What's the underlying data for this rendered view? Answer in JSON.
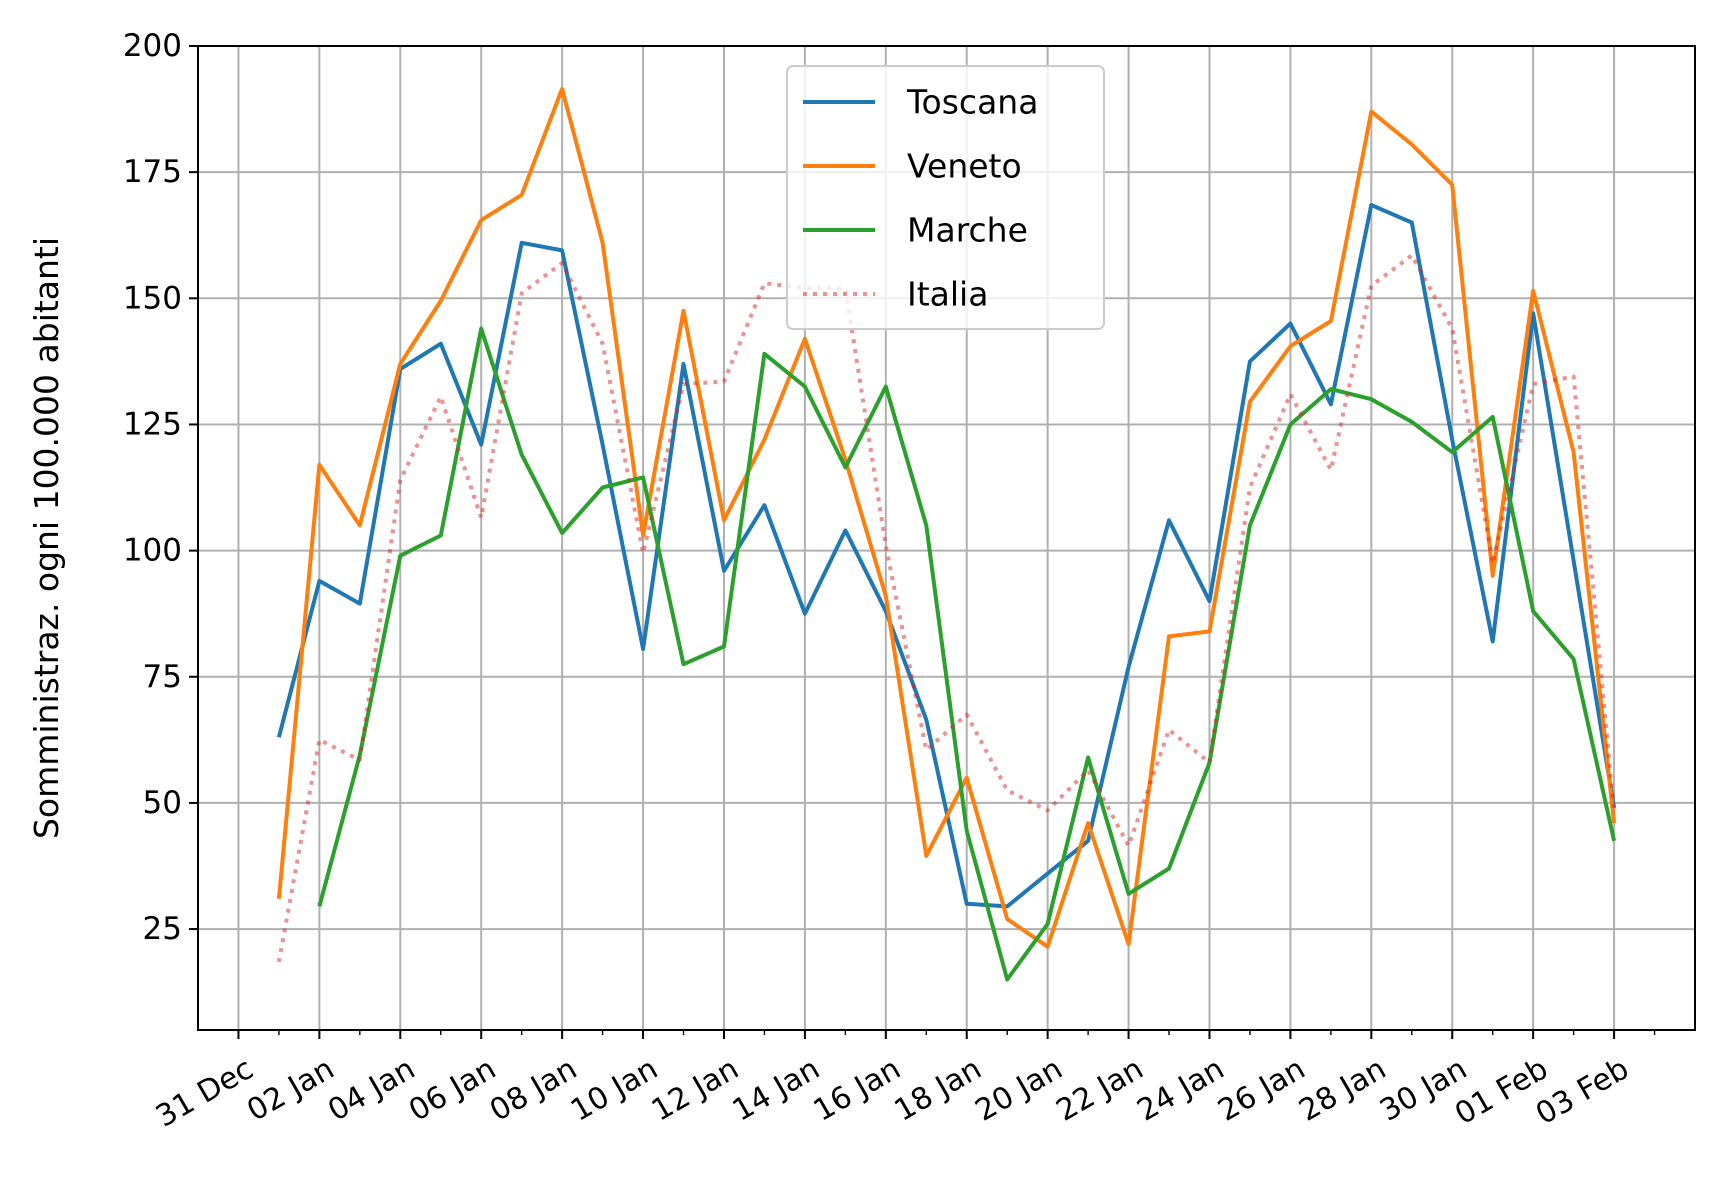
{
  "chart_data": {
    "type": "line",
    "title": "",
    "xlabel": "",
    "ylabel": "Somministraz. ogni 100.000 abitanti",
    "ylim": [
      5,
      200
    ],
    "xlim": [
      "2020-12-30",
      "2021-02-05"
    ],
    "yticks": [
      25,
      50,
      75,
      100,
      125,
      150,
      175,
      200
    ],
    "xticks": [
      {
        "date": "2020-12-31",
        "label": "31 Dec"
      },
      {
        "date": "2021-01-02",
        "label": "02 Jan"
      },
      {
        "date": "2021-01-04",
        "label": "04 Jan"
      },
      {
        "date": "2021-01-06",
        "label": "06 Jan"
      },
      {
        "date": "2021-01-08",
        "label": "08 Jan"
      },
      {
        "date": "2021-01-10",
        "label": "10 Jan"
      },
      {
        "date": "2021-01-12",
        "label": "12 Jan"
      },
      {
        "date": "2021-01-14",
        "label": "14 Jan"
      },
      {
        "date": "2021-01-16",
        "label": "16 Jan"
      },
      {
        "date": "2021-01-18",
        "label": "18 Jan"
      },
      {
        "date": "2021-01-20",
        "label": "20 Jan"
      },
      {
        "date": "2021-01-22",
        "label": "22 Jan"
      },
      {
        "date": "2021-01-24",
        "label": "24 Jan"
      },
      {
        "date": "2021-01-26",
        "label": "26 Jan"
      },
      {
        "date": "2021-01-28",
        "label": "28 Jan"
      },
      {
        "date": "2021-01-30",
        "label": "30 Jan"
      },
      {
        "date": "2021-02-01",
        "label": "01 Feb"
      },
      {
        "date": "2021-02-03",
        "label": "03 Feb"
      }
    ],
    "grid": true,
    "legend_position": "top-center",
    "series": [
      {
        "name": "Toscana",
        "color": "#1f77b4",
        "style": "solid",
        "points": [
          {
            "x": "2021-01-01",
            "y": 63
          },
          {
            "x": "2021-01-02",
            "y": 94
          },
          {
            "x": "2021-01-03",
            "y": 89.5
          },
          {
            "x": "2021-01-04",
            "y": 136
          },
          {
            "x": "2021-01-05",
            "y": 141
          },
          {
            "x": "2021-01-06",
            "y": 121
          },
          {
            "x": "2021-01-07",
            "y": 161
          },
          {
            "x": "2021-01-08",
            "y": 159.5
          },
          {
            "x": "2021-01-09",
            "y": 121
          },
          {
            "x": "2021-01-10",
            "y": 80.5
          },
          {
            "x": "2021-01-11",
            "y": 137
          },
          {
            "x": "2021-01-12",
            "y": 96
          },
          {
            "x": "2021-01-13",
            "y": 109
          },
          {
            "x": "2021-01-14",
            "y": 87.5
          },
          {
            "x": "2021-01-15",
            "y": 104
          },
          {
            "x": "2021-01-16",
            "y": 88
          },
          {
            "x": "2021-01-17",
            "y": 66.5
          },
          {
            "x": "2021-01-18",
            "y": 30
          },
          {
            "x": "2021-01-19",
            "y": 29.5
          },
          {
            "x": "2021-01-20",
            "y": 36
          },
          {
            "x": "2021-01-21",
            "y": 42.5
          },
          {
            "x": "2021-01-22",
            "y": 77
          },
          {
            "x": "2021-01-23",
            "y": 106
          },
          {
            "x": "2021-01-24",
            "y": 90
          },
          {
            "x": "2021-01-25",
            "y": 137.5
          },
          {
            "x": "2021-01-26",
            "y": 145
          },
          {
            "x": "2021-01-27",
            "y": 129
          },
          {
            "x": "2021-01-28",
            "y": 168.5
          },
          {
            "x": "2021-01-29",
            "y": 165
          },
          {
            "x": "2021-01-30",
            "y": 122
          },
          {
            "x": "2021-01-31",
            "y": 82
          },
          {
            "x": "2021-02-01",
            "y": 147
          },
          {
            "x": "2021-02-02",
            "y": 98
          },
          {
            "x": "2021-02-03",
            "y": 49
          }
        ]
      },
      {
        "name": "Veneto",
        "color": "#ff7f0e",
        "style": "solid",
        "points": [
          {
            "x": "2021-01-01",
            "y": 31
          },
          {
            "x": "2021-01-02",
            "y": 117
          },
          {
            "x": "2021-01-03",
            "y": 105
          },
          {
            "x": "2021-01-04",
            "y": 137
          },
          {
            "x": "2021-01-05",
            "y": 149.5
          },
          {
            "x": "2021-01-06",
            "y": 165.5
          },
          {
            "x": "2021-01-07",
            "y": 170.5
          },
          {
            "x": "2021-01-08",
            "y": 191.5
          },
          {
            "x": "2021-01-09",
            "y": 161
          },
          {
            "x": "2021-01-10",
            "y": 103
          },
          {
            "x": "2021-01-11",
            "y": 147.5
          },
          {
            "x": "2021-01-12",
            "y": 106
          },
          {
            "x": "2021-01-13",
            "y": 122
          },
          {
            "x": "2021-01-14",
            "y": 142
          },
          {
            "x": "2021-01-15",
            "y": 118
          },
          {
            "x": "2021-01-16",
            "y": 91
          },
          {
            "x": "2021-01-17",
            "y": 39.5
          },
          {
            "x": "2021-01-18",
            "y": 55
          },
          {
            "x": "2021-01-19",
            "y": 27
          },
          {
            "x": "2021-01-20",
            "y": 21.5
          },
          {
            "x": "2021-01-21",
            "y": 46
          },
          {
            "x": "2021-01-22",
            "y": 22
          },
          {
            "x": "2021-01-23",
            "y": 83
          },
          {
            "x": "2021-01-24",
            "y": 84
          },
          {
            "x": "2021-01-25",
            "y": 129.5
          },
          {
            "x": "2021-01-26",
            "y": 140.5
          },
          {
            "x": "2021-01-27",
            "y": 145.5
          },
          {
            "x": "2021-01-28",
            "y": 187
          },
          {
            "x": "2021-01-29",
            "y": 180.5
          },
          {
            "x": "2021-01-30",
            "y": 172.5
          },
          {
            "x": "2021-01-31",
            "y": 95
          },
          {
            "x": "2021-02-01",
            "y": 151.5
          },
          {
            "x": "2021-02-02",
            "y": 119.5
          },
          {
            "x": "2021-02-03",
            "y": 46
          }
        ]
      },
      {
        "name": "Marche",
        "color": "#2ca02c",
        "style": "solid",
        "points": [
          {
            "x": "2021-01-02",
            "y": 29.5
          },
          {
            "x": "2021-01-03",
            "y": 59.5
          },
          {
            "x": "2021-01-04",
            "y": 99
          },
          {
            "x": "2021-01-05",
            "y": 103
          },
          {
            "x": "2021-01-06",
            "y": 144
          },
          {
            "x": "2021-01-07",
            "y": 119
          },
          {
            "x": "2021-01-08",
            "y": 103.5
          },
          {
            "x": "2021-01-09",
            "y": 112.5
          },
          {
            "x": "2021-01-10",
            "y": 114.5
          },
          {
            "x": "2021-01-11",
            "y": 77.5
          },
          {
            "x": "2021-01-12",
            "y": 81
          },
          {
            "x": "2021-01-13",
            "y": 139
          },
          {
            "x": "2021-01-14",
            "y": 132.5
          },
          {
            "x": "2021-01-15",
            "y": 116.5
          },
          {
            "x": "2021-01-16",
            "y": 132.5
          },
          {
            "x": "2021-01-17",
            "y": 105
          },
          {
            "x": "2021-01-18",
            "y": 44.5
          },
          {
            "x": "2021-01-19",
            "y": 15
          },
          {
            "x": "2021-01-20",
            "y": 26
          },
          {
            "x": "2021-01-21",
            "y": 59
          },
          {
            "x": "2021-01-22",
            "y": 32
          },
          {
            "x": "2021-01-23",
            "y": 37
          },
          {
            "x": "2021-01-24",
            "y": 58
          },
          {
            "x": "2021-01-25",
            "y": 105
          },
          {
            "x": "2021-01-26",
            "y": 125
          },
          {
            "x": "2021-01-27",
            "y": 132
          },
          {
            "x": "2021-01-28",
            "y": 130
          },
          {
            "x": "2021-01-29",
            "y": 125.5
          },
          {
            "x": "2021-01-30",
            "y": 119.5
          },
          {
            "x": "2021-01-31",
            "y": 126.5
          },
          {
            "x": "2021-02-01",
            "y": 88
          },
          {
            "x": "2021-02-02",
            "y": 78.5
          },
          {
            "x": "2021-02-03",
            "y": 42.5
          }
        ]
      },
      {
        "name": "Italia",
        "color": "#d62728",
        "style": "dotted",
        "opacity": 0.5,
        "points": [
          {
            "x": "2021-01-01",
            "y": 18.5
          },
          {
            "x": "2021-01-02",
            "y": 62.5
          },
          {
            "x": "2021-01-03",
            "y": 58.5
          },
          {
            "x": "2021-01-04",
            "y": 114
          },
          {
            "x": "2021-01-05",
            "y": 130.5
          },
          {
            "x": "2021-01-06",
            "y": 106.5
          },
          {
            "x": "2021-01-07",
            "y": 151
          },
          {
            "x": "2021-01-08",
            "y": 157
          },
          {
            "x": "2021-01-09",
            "y": 141
          },
          {
            "x": "2021-01-10",
            "y": 99.5
          },
          {
            "x": "2021-01-11",
            "y": 133
          },
          {
            "x": "2021-01-12",
            "y": 133.5
          },
          {
            "x": "2021-01-13",
            "y": 153
          },
          {
            "x": "2021-01-14",
            "y": 152
          },
          {
            "x": "2021-01-15",
            "y": 152
          },
          {
            "x": "2021-01-16",
            "y": 101
          },
          {
            "x": "2021-01-17",
            "y": 60.5
          },
          {
            "x": "2021-01-18",
            "y": 67.5
          },
          {
            "x": "2021-01-19",
            "y": 52.5
          },
          {
            "x": "2021-01-20",
            "y": 48.5
          },
          {
            "x": "2021-01-21",
            "y": 56.5
          },
          {
            "x": "2021-01-22",
            "y": 41.5
          },
          {
            "x": "2021-01-23",
            "y": 64.5
          },
          {
            "x": "2021-01-24",
            "y": 58
          },
          {
            "x": "2021-01-25",
            "y": 112.5
          },
          {
            "x": "2021-01-26",
            "y": 131
          },
          {
            "x": "2021-01-27",
            "y": 116
          },
          {
            "x": "2021-01-28",
            "y": 152.5
          },
          {
            "x": "2021-01-29",
            "y": 158.5
          },
          {
            "x": "2021-01-30",
            "y": 144
          },
          {
            "x": "2021-01-31",
            "y": 97.5
          },
          {
            "x": "2021-02-01",
            "y": 133
          },
          {
            "x": "2021-02-02",
            "y": 134.5
          },
          {
            "x": "2021-02-03",
            "y": 48
          }
        ]
      }
    ]
  }
}
